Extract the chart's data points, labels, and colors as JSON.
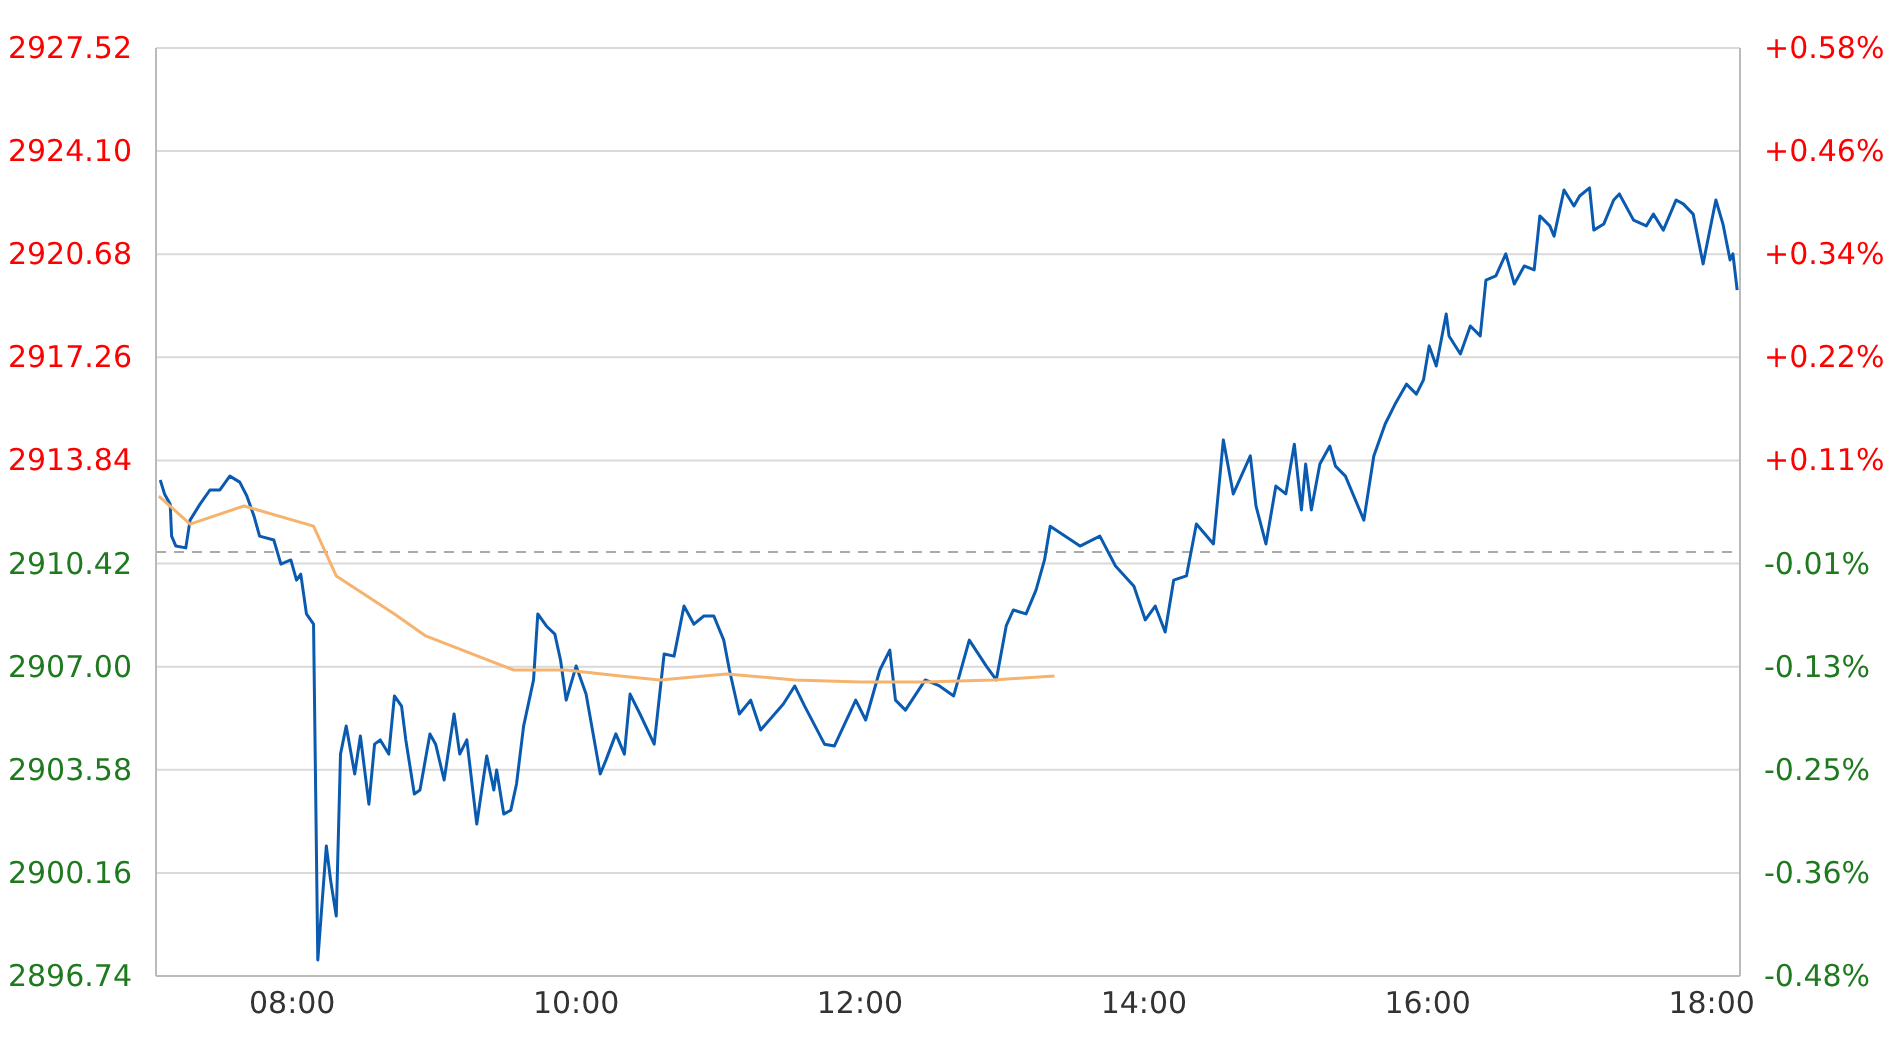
{
  "chart_data": {
    "type": "line",
    "xlim": [
      7.04,
      18.2
    ],
    "xticks": [
      {
        "value": 8,
        "label": "08:00"
      },
      {
        "value": 10,
        "label": "10:00"
      },
      {
        "value": 12,
        "label": "12:00"
      },
      {
        "value": 14,
        "label": "14:00"
      },
      {
        "value": 16,
        "label": "16:00"
      },
      {
        "value": 18,
        "label": "18:00"
      }
    ],
    "ylim": [
      2896.74,
      2927.52
    ],
    "yticks": [
      2896.74,
      2900.16,
      2903.58,
      {
        "value": 2907,
        "label": "2907.00"
      },
      2910.42,
      2913.84,
      2917.26,
      2920.68,
      {
        "value": 2924.1,
        "label": "2924.10"
      },
      2927.52
    ],
    "y2lim": [
      -0.481,
      0.5765
    ],
    "y2ticks": [
      {
        "value": -0.481,
        "label": "-0.48%"
      },
      {
        "value": -0.3635,
        "label": "-0.36%"
      },
      {
        "value": -0.246,
        "label": "-0.25%"
      },
      {
        "value": -0.1285,
        "label": "-0.13%"
      },
      {
        "value": -0.011,
        "label": "-0.01%"
      },
      {
        "value": 0.1065,
        "label": "+0.11%"
      },
      {
        "value": 0.224,
        "label": "+0.22%"
      },
      {
        "value": 0.3415,
        "label": "+0.34%"
      },
      {
        "value": 0.459,
        "label": "+0.46%"
      },
      {
        "value": 0.5765,
        "label": "+0.58%"
      }
    ],
    "grid": "y",
    "legend": false,
    "marker": "none",
    "ref_lines": [
      {
        "axis": "y",
        "value": 2910.8,
        "color": "#aaaaaa",
        "line_style": "dashed"
      }
    ],
    "series": [
      {
        "color": "#0a5bb0",
        "x": [
          7.07,
          7.1,
          7.14,
          7.15,
          7.18,
          7.25,
          7.28,
          7.35,
          7.42,
          7.49,
          7.56,
          7.63,
          7.68,
          7.73,
          7.77,
          7.87,
          7.92,
          7.99,
          8.03,
          8.06,
          8.1,
          8.15,
          8.18,
          8.24,
          8.27,
          8.31,
          8.34,
          8.38,
          8.44,
          8.48,
          8.54,
          8.58,
          8.62,
          8.68,
          8.72,
          8.77,
          8.8,
          8.86,
          8.9,
          8.97,
          9.01,
          9.07,
          9.14,
          9.18,
          9.23,
          9.3,
          9.37,
          9.42,
          9.44,
          9.49,
          9.54,
          9.58,
          9.63,
          9.7,
          9.73,
          9.79,
          9.85,
          9.89,
          9.93,
          10,
          10.07,
          10.17,
          10.21,
          10.28,
          10.34,
          10.38,
          10.45,
          10.55,
          10.62,
          10.69,
          10.76,
          10.83,
          10.9,
          10.97,
          11.04,
          11.08,
          11.15,
          11.23,
          11.3,
          11.46,
          11.54,
          11.61,
          11.75,
          11.82,
          11.97,
          12.04,
          12.14,
          12.21,
          12.25,
          12.32,
          12.46,
          12.56,
          12.66,
          12.77,
          12.89,
          12.96,
          13.03,
          13.08,
          13.17,
          13.24,
          13.3,
          13.34,
          13.55,
          13.69,
          13.8,
          13.93,
          14.01,
          14.08,
          14.15,
          14.21,
          14.3,
          14.37,
          14.49,
          14.56,
          14.63,
          14.75,
          14.79,
          14.86,
          14.93,
          15,
          15.06,
          15.11,
          15.14,
          15.18,
          15.24,
          15.31,
          15.35,
          15.42,
          15.55,
          15.62,
          15.7,
          15.77,
          15.85,
          15.92,
          15.97,
          16.01,
          16.06,
          16.13,
          16.15,
          16.23,
          16.3,
          16.37,
          16.41,
          16.48,
          16.55,
          16.61,
          16.68,
          16.75,
          16.79,
          16.86,
          16.89,
          16.96,
          17.03,
          17.07,
          17.14,
          17.17,
          17.24,
          17.31,
          17.35,
          17.45,
          17.54,
          17.59,
          17.66,
          17.75,
          17.8,
          17.87,
          17.94,
          18.03,
          18.08,
          18.13,
          18.15,
          18.18
        ],
        "values": [
          2913.19,
          2912.73,
          2912.39,
          2911.33,
          2911,
          2910.94,
          2911.86,
          2912.39,
          2912.86,
          2912.86,
          2913.32,
          2913.12,
          2912.66,
          2912,
          2911.33,
          2911.2,
          2910.4,
          2910.54,
          2909.87,
          2910.07,
          2908.75,
          2908.41,
          2897.27,
          2901.05,
          2899.92,
          2898.73,
          2904.1,
          2905.03,
          2903.44,
          2904.7,
          2902.44,
          2904.43,
          2904.57,
          2904.1,
          2906.03,
          2905.69,
          2904.57,
          2902.78,
          2902.91,
          2904.77,
          2904.43,
          2903.24,
          2905.43,
          2904.1,
          2904.57,
          2901.78,
          2904.04,
          2902.91,
          2903.57,
          2902.11,
          2902.24,
          2903.11,
          2905.03,
          2906.56,
          2908.75,
          2908.35,
          2908.08,
          2907.22,
          2905.89,
          2907.02,
          2906.09,
          2903.44,
          2903.9,
          2904.77,
          2904.1,
          2906.09,
          2905.43,
          2904.43,
          2907.42,
          2907.35,
          2909.01,
          2908.41,
          2908.68,
          2908.68,
          2907.88,
          2906.89,
          2905.43,
          2905.89,
          2904.9,
          2905.76,
          2906.36,
          2905.69,
          2904.43,
          2904.37,
          2905.89,
          2905.23,
          2906.89,
          2907.55,
          2905.89,
          2905.56,
          2906.56,
          2906.36,
          2906.03,
          2907.88,
          2907.02,
          2906.56,
          2908.35,
          2908.88,
          2908.75,
          2909.54,
          2910.54,
          2911.66,
          2911,
          2911.33,
          2910.34,
          2909.67,
          2908.55,
          2909.01,
          2908.15,
          2909.87,
          2910.01,
          2911.73,
          2911.07,
          2914.52,
          2912.73,
          2913.99,
          2912.33,
          2911.07,
          2912.99,
          2912.73,
          2914.38,
          2912.2,
          2913.72,
          2912.2,
          2913.72,
          2914.32,
          2913.65,
          2913.32,
          2911.86,
          2913.99,
          2915.05,
          2915.71,
          2916.37,
          2916.04,
          2916.51,
          2917.64,
          2916.97,
          2918.7,
          2917.97,
          2917.37,
          2918.3,
          2917.97,
          2919.82,
          2919.96,
          2920.69,
          2919.69,
          2920.29,
          2920.16,
          2921.95,
          2921.62,
          2921.28,
          2922.81,
          2922.28,
          2922.61,
          2922.88,
          2921.48,
          2921.68,
          2922.48,
          2922.68,
          2921.81,
          2921.62,
          2922.01,
          2921.48,
          2922.48,
          2922.35,
          2922.01,
          2920.36,
          2922.48,
          2921.68,
          2920.49,
          2920.69,
          2919.49
        ]
      },
      {
        "color": "#f5b36e",
        "x": [
          7.06,
          7.28,
          7.66,
          8.15,
          8.31,
          8.72,
          8.94,
          9.56,
          9.93,
          10.31,
          10.59,
          11.06,
          11.54,
          12,
          12.46,
          12.94,
          13.37
        ],
        "values": [
          2912.66,
          2911.73,
          2912.33,
          2911.66,
          2910.01,
          2908.75,
          2908.02,
          2906.89,
          2906.89,
          2906.69,
          2906.56,
          2906.76,
          2906.56,
          2906.49,
          2906.49,
          2906.56,
          2906.69
        ]
      }
    ]
  }
}
